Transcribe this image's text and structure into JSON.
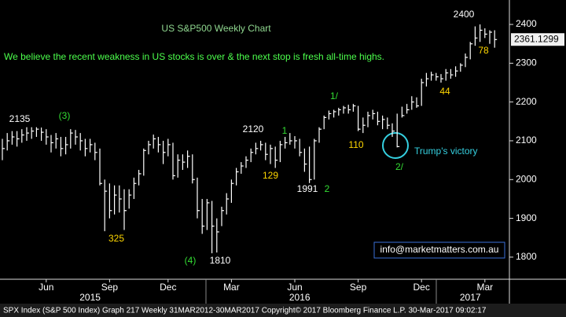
{
  "chart_data": {
    "type": "hlc",
    "title": "US S&P500 Weekly Chart",
    "subtitle": "We believe the recent weakness in US stocks is over & the next stop is fresh all-time highs.",
    "footer": "SPX Index (S&P 500 Index) Graph 217  Weekly 31MAR2012-30MAR2017  Copyright© 2017 Bloomberg Finance L.P.  30-Mar-2017 09:02:17",
    "email": "info@marketmatters.com.au",
    "color": "#ffffff",
    "categories": [
      null,
      null,
      null,
      null,
      null,
      null,
      null,
      null,
      null,
      "Jun",
      null,
      null,
      null,
      null,
      null,
      null,
      null,
      null,
      null,
      null,
      null,
      null,
      "Sep",
      null,
      null,
      null,
      null,
      null,
      null,
      null,
      null,
      null,
      null,
      null,
      "Dec",
      null,
      null,
      null,
      null,
      null,
      null,
      null,
      null,
      null,
      null,
      null,
      null,
      "Mar",
      null,
      null,
      null,
      null,
      null,
      null,
      null,
      null,
      null,
      null,
      null,
      null,
      "Jun",
      null,
      null,
      null,
      null,
      null,
      null,
      null,
      null,
      null,
      null,
      null,
      null,
      "Sep",
      null,
      null,
      null,
      null,
      null,
      null,
      null,
      null,
      null,
      null,
      null,
      null,
      "Dec",
      null,
      null,
      null,
      null,
      null,
      null,
      null,
      null,
      null,
      null,
      null,
      null,
      "Mar",
      null,
      null
    ],
    "years": [
      null,
      null,
      null,
      null,
      null,
      null,
      null,
      null,
      null,
      null,
      null,
      null,
      null,
      null,
      null,
      null,
      null,
      null,
      "2015",
      null,
      null,
      null,
      null,
      null,
      null,
      null,
      null,
      null,
      null,
      null,
      null,
      null,
      null,
      null,
      null,
      null,
      null,
      null,
      null,
      null,
      null,
      null,
      null,
      null,
      null,
      null,
      null,
      null,
      null,
      null,
      null,
      null,
      null,
      null,
      null,
      null,
      null,
      null,
      null,
      null,
      null,
      "2016",
      null,
      null,
      null,
      null,
      null,
      null,
      null,
      null,
      null,
      null,
      null,
      null,
      null,
      null,
      null,
      null,
      null,
      null,
      null,
      null,
      null,
      null,
      null,
      null,
      null,
      null,
      null,
      null,
      null,
      null,
      null,
      null,
      null,
      null,
      "2017",
      null,
      null,
      null,
      null,
      null
    ],
    "high": [
      2105,
      2120,
      2125,
      2125,
      2130,
      2135,
      2135,
      2135,
      2134,
      2130,
      2115,
      2120,
      2110,
      2110,
      2130,
      2128,
      2120,
      2105,
      2105,
      2095,
      2080,
      2000,
      1990,
      1985,
      1985,
      1975,
      1975,
      2005,
      2025,
      2080,
      2100,
      2116,
      2110,
      2100,
      2105,
      2095,
      2065,
      2065,
      2075,
      2065,
      2005,
      1950,
      1950,
      1945,
      1900,
      1930,
      1965,
      2000,
      2030,
      2045,
      2060,
      2080,
      2095,
      2100,
      2095,
      2090,
      2085,
      2100,
      2110,
      2120,
      2112,
      2105,
      2080,
      2085,
      2105,
      2135,
      2165,
      2178,
      2180,
      2185,
      2190,
      2193,
      2195,
      2190,
      2160,
      2175,
      2180,
      2175,
      2165,
      2160,
      2145,
      2170,
      2188,
      2195,
      2215,
      2212,
      2260,
      2275,
      2278,
      2275,
      2272,
      2285,
      2285,
      2292,
      2300,
      2325,
      2355,
      2395,
      2400,
      2390,
      2385,
      2385
    ],
    "low": [
      2050,
      2075,
      2090,
      2085,
      2095,
      2100,
      2105,
      2110,
      2100,
      2090,
      2070,
      2080,
      2060,
      2065,
      2080,
      2090,
      2075,
      2060,
      2070,
      2050,
      1985,
      1867,
      1900,
      1910,
      1915,
      1870,
      1925,
      1950,
      1985,
      2010,
      2065,
      2080,
      2070,
      2040,
      2060,
      2000,
      2005,
      2025,
      2030,
      1990,
      1900,
      1860,
      1870,
      1810,
      1812,
      1880,
      1910,
      1940,
      1985,
      2015,
      2030,
      2045,
      2065,
      2075,
      2050,
      2040,
      2030,
      2045,
      2080,
      2090,
      2080,
      2060,
      2020,
      1991,
      2000,
      2095,
      2130,
      2155,
      2160,
      2165,
      2170,
      2170,
      2175,
      2125,
      2120,
      2135,
      2155,
      2140,
      2130,
      2130,
      2110,
      2083,
      2160,
      2170,
      2180,
      2185,
      2190,
      2240,
      2255,
      2255,
      2250,
      2255,
      2260,
      2265,
      2278,
      2290,
      2310,
      2345,
      2355,
      2365,
      2350,
      2340
    ],
    "close": [
      2080,
      2100,
      2110,
      2105,
      2115,
      2120,
      2125,
      2130,
      2122,
      2110,
      2095,
      2105,
      2080,
      2090,
      2120,
      2110,
      2100,
      2080,
      2090,
      2070,
      1990,
      1970,
      1920,
      1960,
      1950,
      1920,
      1960,
      1990,
      2015,
      2075,
      2090,
      2105,
      2090,
      2070,
      2090,
      2010,
      2050,
      2045,
      2060,
      2000,
      1920,
      1880,
      1940,
      1880,
      1865,
      1920,
      1950,
      1990,
      2020,
      2035,
      2050,
      2070,
      2080,
      2090,
      2065,
      2080,
      2050,
      2090,
      2095,
      2100,
      2100,
      2070,
      2040,
      2000,
      2100,
      2130,
      2160,
      2170,
      2175,
      2180,
      2185,
      2180,
      2190,
      2130,
      2140,
      2165,
      2170,
      2150,
      2155,
      2140,
      2125,
      2085,
      2165,
      2180,
      2200,
      2190,
      2250,
      2260,
      2270,
      2265,
      2260,
      2275,
      2270,
      2280,
      2295,
      2315,
      2350,
      2365,
      2385,
      2375,
      2380,
      2361
    ],
    "last_price": 2361.1299,
    "ylim": [
      1743,
      2463
    ],
    "yticks": [
      1800,
      1900,
      2000,
      2100,
      2200,
      2300,
      2400
    ],
    "grid": false,
    "annotations": [
      {
        "text": "2135",
        "color": "#ffffff"
      },
      {
        "text": "(3)",
        "color": "#33dd33"
      },
      {
        "text": "325",
        "color": "#ffd700"
      },
      {
        "text": "(4)",
        "color": "#33dd33"
      },
      {
        "text": "1810",
        "color": "#ffffff"
      },
      {
        "text": "2120",
        "color": "#ffffff"
      },
      {
        "text": "1",
        "color": "#33dd33"
      },
      {
        "text": "129",
        "color": "#ffd700"
      },
      {
        "text": "1991",
        "color": "#ffffff"
      },
      {
        "text": "2",
        "color": "#33dd33"
      },
      {
        "text": "1/",
        "color": "#33dd33"
      },
      {
        "text": "110",
        "color": "#ffd700"
      },
      {
        "text": "2/",
        "color": "#33dd33"
      },
      {
        "text": "Trump's victory",
        "color": "#35d0e0"
      },
      {
        "text": "2400",
        "color": "#ffffff"
      },
      {
        "text": "44",
        "color": "#ffd700"
      },
      {
        "text": "78",
        "color": "#ffd700"
      }
    ]
  }
}
